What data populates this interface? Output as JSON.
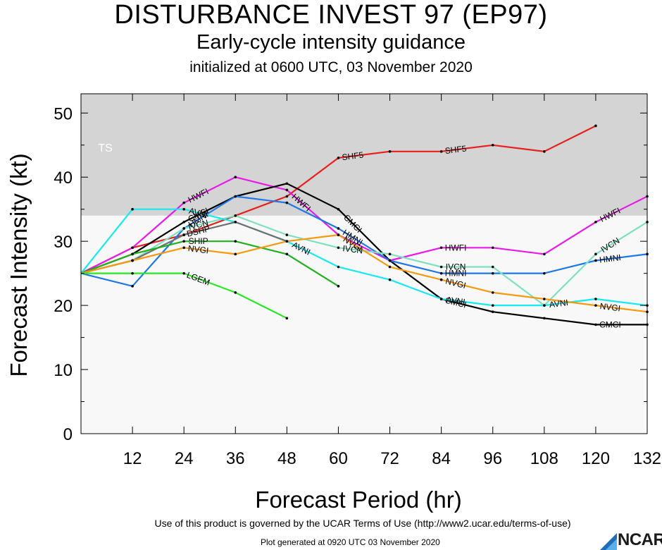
{
  "titles": {
    "main": "DISTURBANCE INVEST 97 (EP97)",
    "sub": "Early-cycle intensity guidance",
    "init": "initialized at 0600 UTC, 03 November 2020"
  },
  "footer": {
    "terms": "Use of this product is governed by the UCAR Terms of Use (http://www2.ucar.edu/terms-of-use)",
    "generated": "Plot generated at 0920 UTC   03 November 2020",
    "logo": "NCAR"
  },
  "chart_data": {
    "type": "line",
    "xlabel": "Forecast Period (hr)",
    "ylabel": "Forecast Intensity (kt)",
    "xlim": [
      0,
      132
    ],
    "ylim": [
      0,
      53
    ],
    "xticks": [
      12,
      24,
      36,
      48,
      60,
      72,
      84,
      96,
      108,
      120,
      132
    ],
    "yticks": [
      0,
      10,
      20,
      30,
      40,
      50
    ],
    "bands": [
      {
        "label": "TS",
        "from": 34,
        "to": 53,
        "color": "#d4d4d4"
      }
    ],
    "lower_band_color": "#f8f8f8",
    "series": [
      {
        "name": "SHF5",
        "color": "#e8201c",
        "points": [
          [
            0,
            25
          ],
          [
            12,
            29
          ],
          [
            24,
            31
          ],
          [
            36,
            34
          ],
          [
            48,
            37
          ],
          [
            60,
            43
          ],
          [
            72,
            44
          ],
          [
            84,
            44
          ],
          [
            96,
            45
          ],
          [
            108,
            44
          ],
          [
            120,
            48
          ]
        ],
        "labels": [
          [
            60,
            "SHF5"
          ],
          [
            84,
            "SHF5"
          ]
        ]
      },
      {
        "name": "HWFI",
        "color": "#e81ae8",
        "points": [
          [
            0,
            25
          ],
          [
            12,
            29
          ],
          [
            24,
            36
          ],
          [
            36,
            40
          ],
          [
            48,
            38
          ],
          [
            60,
            31
          ],
          [
            72,
            27
          ],
          [
            84,
            29
          ],
          [
            96,
            29
          ],
          [
            108,
            28
          ],
          [
            120,
            33
          ],
          [
            132,
            37
          ]
        ],
        "labels": [
          [
            24,
            "HWFI"
          ],
          [
            48,
            "HWFI"
          ],
          [
            84,
            "HWFI"
          ],
          [
            120,
            "HWFI"
          ]
        ]
      },
      {
        "name": "CMCI",
        "color": "#000000",
        "points": [
          [
            0,
            25
          ],
          [
            12,
            28
          ],
          [
            24,
            33
          ],
          [
            36,
            37
          ],
          [
            48,
            39
          ],
          [
            60,
            35
          ],
          [
            72,
            27
          ],
          [
            84,
            21
          ],
          [
            96,
            19
          ],
          [
            108,
            18
          ],
          [
            120,
            17
          ],
          [
            132,
            17
          ]
        ],
        "labels": [
          [
            24,
            "CMCI"
          ],
          [
            60,
            "CMCI"
          ],
          [
            84,
            "CMCI"
          ],
          [
            120,
            "CMCI"
          ]
        ]
      },
      {
        "name": "HMNI",
        "color": "#1e78e8",
        "points": [
          [
            0,
            25
          ],
          [
            12,
            23
          ],
          [
            24,
            32
          ],
          [
            36,
            37
          ],
          [
            48,
            36
          ],
          [
            60,
            32
          ],
          [
            72,
            27
          ],
          [
            84,
            25
          ],
          [
            96,
            25
          ],
          [
            108,
            25
          ],
          [
            120,
            27
          ],
          [
            132,
            28
          ]
        ],
        "labels": [
          [
            24,
            "HMNI"
          ],
          [
            60,
            "HMNI"
          ],
          [
            84,
            "HMNI"
          ],
          [
            120,
            "HMNI"
          ]
        ]
      },
      {
        "name": "IVCN",
        "color": "#7ee0c0",
        "points": [
          [
            0,
            25
          ],
          [
            12,
            27
          ],
          [
            24,
            32
          ],
          [
            36,
            34
          ],
          [
            48,
            31
          ],
          [
            60,
            29
          ],
          [
            72,
            28
          ],
          [
            84,
            26
          ],
          [
            96,
            26
          ],
          [
            108,
            20
          ],
          [
            120,
            28
          ],
          [
            132,
            33
          ]
        ],
        "labels": [
          [
            24,
            "IVCN"
          ],
          [
            60,
            "IVCN"
          ],
          [
            84,
            "IVCN"
          ],
          [
            120,
            "IVCN"
          ]
        ]
      },
      {
        "name": "AVNI",
        "color": "#18e8f0",
        "points": [
          [
            0,
            25
          ],
          [
            12,
            35
          ],
          [
            24,
            35
          ],
          [
            36,
            33
          ],
          [
            48,
            30
          ],
          [
            60,
            26
          ],
          [
            72,
            24
          ],
          [
            84,
            21
          ],
          [
            96,
            20
          ],
          [
            108,
            20
          ],
          [
            120,
            21
          ],
          [
            132,
            20
          ]
        ],
        "labels": [
          [
            24,
            "AVNI"
          ],
          [
            48,
            "AVNI"
          ],
          [
            84,
            "AVNI"
          ],
          [
            108,
            "AVNI"
          ]
        ]
      },
      {
        "name": "DSHP",
        "color": "#707070",
        "points": [
          [
            0,
            25
          ],
          [
            12,
            27
          ],
          [
            24,
            31
          ],
          [
            36,
            33
          ],
          [
            48,
            30
          ]
        ],
        "labels": [
          [
            24,
            "DSHP"
          ]
        ]
      },
      {
        "name": "SHIP",
        "color": "#20b020",
        "points": [
          [
            0,
            25
          ],
          [
            12,
            28
          ],
          [
            24,
            30
          ],
          [
            36,
            30
          ],
          [
            48,
            28
          ],
          [
            60,
            23
          ]
        ],
        "labels": [
          [
            24,
            "SHIP"
          ]
        ]
      },
      {
        "name": "NVGI",
        "color": "#f59a10",
        "points": [
          [
            0,
            25
          ],
          [
            12,
            27
          ],
          [
            24,
            29
          ],
          [
            36,
            28
          ],
          [
            48,
            30
          ],
          [
            60,
            31
          ],
          [
            72,
            26
          ],
          [
            84,
            24
          ],
          [
            96,
            22
          ],
          [
            108,
            21
          ],
          [
            120,
            20
          ],
          [
            132,
            19
          ]
        ],
        "labels": [
          [
            24,
            "NVGI"
          ],
          [
            60,
            "NVGI"
          ],
          [
            84,
            "NVGI"
          ],
          [
            120,
            "NVGI"
          ]
        ]
      },
      {
        "name": "LGEM",
        "color": "#28e828",
        "points": [
          [
            0,
            25
          ],
          [
            12,
            25
          ],
          [
            24,
            25
          ],
          [
            36,
            22
          ],
          [
            48,
            18
          ]
        ],
        "labels": [
          [
            24,
            "LGEM"
          ]
        ]
      }
    ]
  }
}
